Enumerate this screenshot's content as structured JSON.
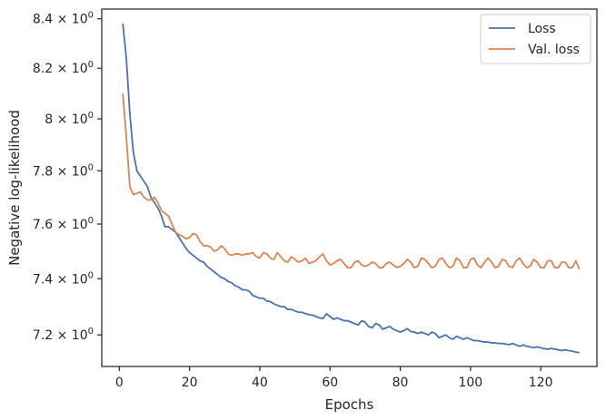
{
  "chart_data": {
    "type": "line",
    "title": "",
    "xlabel": "Epochs",
    "ylabel": "Negative log-likelihood",
    "xlim": [
      -5,
      136
    ],
    "ylim": [
      7.09,
      8.44
    ],
    "y_scale": "log",
    "grid": false,
    "legend_position": "top-right",
    "x_ticks": [
      0,
      20,
      40,
      60,
      80,
      100,
      120
    ],
    "x_tick_labels": [
      "0",
      "20",
      "40",
      "60",
      "80",
      "100",
      "120"
    ],
    "y_ticks": [
      7.2,
      7.4,
      7.6,
      7.8,
      8.0,
      8.2,
      8.4
    ],
    "y_tick_labels": [
      {
        "mantissa": "7.2",
        "base": "10",
        "exp": "0"
      },
      {
        "mantissa": "7.4",
        "base": "10",
        "exp": "0"
      },
      {
        "mantissa": "7.6",
        "base": "10",
        "exp": "0"
      },
      {
        "mantissa": "7.8",
        "base": "10",
        "exp": "0"
      },
      {
        "mantissa": "8",
        "base": "10",
        "exp": "0"
      },
      {
        "mantissa": "8.2",
        "base": "10",
        "exp": "0"
      },
      {
        "mantissa": "8.4",
        "base": "10",
        "exp": "0"
      }
    ],
    "series": [
      {
        "name": "Loss",
        "color": "#4c72b0",
        "x": [
          1,
          2,
          3,
          4,
          5,
          6,
          7,
          8,
          9,
          10,
          11,
          12,
          13,
          14,
          15,
          16,
          17,
          18,
          19,
          20,
          21,
          22,
          23,
          24,
          25,
          26,
          27,
          28,
          29,
          30,
          31,
          32,
          33,
          34,
          35,
          36,
          37,
          38,
          39,
          40,
          41,
          42,
          43,
          44,
          45,
          46,
          47,
          48,
          49,
          50,
          51,
          52,
          53,
          54,
          55,
          56,
          57,
          58,
          59,
          60,
          61,
          62,
          63,
          64,
          65,
          66,
          67,
          68,
          69,
          70,
          71,
          72,
          73,
          74,
          75,
          76,
          77,
          78,
          79,
          80,
          81,
          82,
          83,
          84,
          85,
          86,
          87,
          88,
          89,
          90,
          91,
          92,
          93,
          94,
          95,
          96,
          97,
          98,
          99,
          100,
          101,
          102,
          103,
          104,
          105,
          106,
          107,
          108,
          109,
          110,
          111,
          112,
          113,
          114,
          115,
          116,
          117,
          118,
          119,
          120,
          121,
          122,
          123,
          124,
          125,
          126,
          127,
          128,
          129,
          130,
          131
        ],
        "y": [
          8.38,
          8.24,
          8.02,
          7.87,
          7.8,
          7.78,
          7.76,
          7.74,
          7.7,
          7.68,
          7.66,
          7.63,
          7.59,
          7.59,
          7.58,
          7.57,
          7.55,
          7.53,
          7.51,
          7.495,
          7.485,
          7.475,
          7.465,
          7.46,
          7.445,
          7.435,
          7.425,
          7.415,
          7.405,
          7.4,
          7.39,
          7.385,
          7.375,
          7.37,
          7.36,
          7.36,
          7.355,
          7.34,
          7.335,
          7.33,
          7.33,
          7.32,
          7.318,
          7.31,
          7.305,
          7.3,
          7.3,
          7.29,
          7.29,
          7.285,
          7.28,
          7.28,
          7.275,
          7.272,
          7.27,
          7.265,
          7.26,
          7.258,
          7.275,
          7.265,
          7.255,
          7.26,
          7.255,
          7.25,
          7.25,
          7.245,
          7.24,
          7.235,
          7.25,
          7.245,
          7.23,
          7.225,
          7.24,
          7.235,
          7.22,
          7.225,
          7.23,
          7.22,
          7.215,
          7.21,
          7.215,
          7.222,
          7.212,
          7.21,
          7.205,
          7.21,
          7.205,
          7.2,
          7.21,
          7.205,
          7.19,
          7.195,
          7.2,
          7.19,
          7.185,
          7.195,
          7.19,
          7.185,
          7.19,
          7.185,
          7.18,
          7.18,
          7.177,
          7.175,
          7.175,
          7.172,
          7.172,
          7.17,
          7.17,
          7.168,
          7.166,
          7.17,
          7.165,
          7.16,
          7.165,
          7.16,
          7.158,
          7.155,
          7.158,
          7.155,
          7.152,
          7.15,
          7.153,
          7.15,
          7.148,
          7.145,
          7.148,
          7.145,
          7.143,
          7.14,
          7.138
        ]
      },
      {
        "name": "Val. loss",
        "color": "#dd8452",
        "x": [
          1,
          2,
          3,
          4,
          5,
          6,
          7,
          8,
          9,
          10,
          11,
          12,
          13,
          14,
          15,
          16,
          17,
          18,
          19,
          20,
          21,
          22,
          23,
          24,
          25,
          26,
          27,
          28,
          29,
          30,
          31,
          32,
          33,
          34,
          35,
          36,
          37,
          38,
          39,
          40,
          41,
          42,
          43,
          44,
          45,
          46,
          47,
          48,
          49,
          50,
          51,
          52,
          53,
          54,
          55,
          56,
          57,
          58,
          59,
          60,
          61,
          62,
          63,
          64,
          65,
          66,
          67,
          68,
          69,
          70,
          71,
          72,
          73,
          74,
          75,
          76,
          77,
          78,
          79,
          80,
          81,
          82,
          83,
          84,
          85,
          86,
          87,
          88,
          89,
          90,
          91,
          92,
          93,
          94,
          95,
          96,
          97,
          98,
          99,
          100,
          101,
          102,
          103,
          104,
          105,
          106,
          107,
          108,
          109,
          110,
          111,
          112,
          113,
          114,
          115,
          116,
          117,
          118,
          119,
          120,
          121,
          122,
          123,
          124,
          125,
          126,
          127,
          128,
          129,
          130,
          131
        ],
        "y": [
          8.1,
          7.93,
          7.74,
          7.71,
          7.715,
          7.72,
          7.7,
          7.69,
          7.69,
          7.7,
          7.68,
          7.65,
          7.64,
          7.63,
          7.6,
          7.57,
          7.56,
          7.555,
          7.545,
          7.55,
          7.565,
          7.56,
          7.535,
          7.52,
          7.52,
          7.515,
          7.5,
          7.505,
          7.52,
          7.51,
          7.49,
          7.485,
          7.49,
          7.49,
          7.485,
          7.49,
          7.49,
          7.495,
          7.48,
          7.475,
          7.495,
          7.49,
          7.475,
          7.47,
          7.495,
          7.48,
          7.465,
          7.46,
          7.48,
          7.47,
          7.46,
          7.465,
          7.475,
          7.455,
          7.46,
          7.465,
          7.48,
          7.49,
          7.465,
          7.45,
          7.455,
          7.465,
          7.47,
          7.455,
          7.44,
          7.44,
          7.46,
          7.465,
          7.45,
          7.445,
          7.45,
          7.46,
          7.455,
          7.44,
          7.44,
          7.455,
          7.46,
          7.45,
          7.44,
          7.445,
          7.455,
          7.47,
          7.46,
          7.44,
          7.445,
          7.475,
          7.47,
          7.455,
          7.44,
          7.445,
          7.47,
          7.475,
          7.455,
          7.44,
          7.445,
          7.475,
          7.465,
          7.44,
          7.44,
          7.47,
          7.475,
          7.45,
          7.44,
          7.46,
          7.475,
          7.46,
          7.44,
          7.445,
          7.47,
          7.465,
          7.445,
          7.44,
          7.465,
          7.475,
          7.455,
          7.44,
          7.445,
          7.47,
          7.46,
          7.44,
          7.44,
          7.465,
          7.465,
          7.44,
          7.44,
          7.46,
          7.46,
          7.44,
          7.44,
          7.465,
          7.435
        ]
      }
    ]
  }
}
